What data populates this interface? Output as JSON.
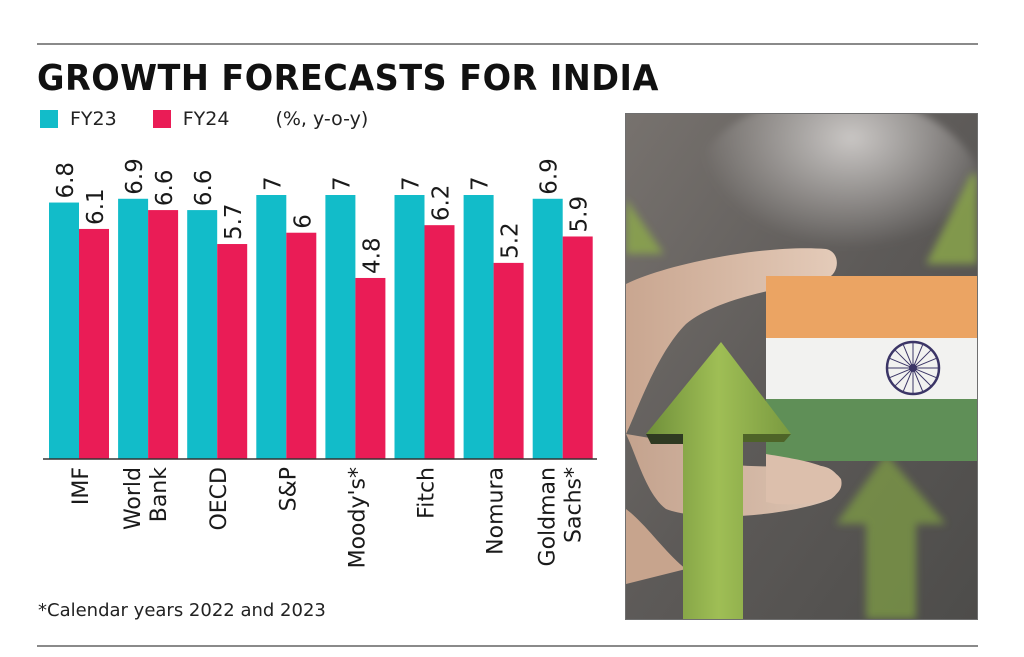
{
  "title": "GROWTH FORECASTS FOR INDIA",
  "legend": {
    "items": [
      {
        "label": "FY23",
        "color": "#12bcc9"
      },
      {
        "label": "FY24",
        "color": "#ea1c56"
      }
    ],
    "unit": "(%, y-o-y)"
  },
  "footnote": "*Calendar years 2022 and 2023",
  "photo": {
    "description": "Hand holding an Indian flag card with green upward arrows",
    "flag_colors": {
      "saffron": "#eba463",
      "white": "#f2f2f0",
      "green": "#5f8f57",
      "chakra": "#3b3566"
    },
    "arrow_color": "#8fae4a"
  },
  "chart_data": {
    "type": "bar",
    "title": "GROWTH FORECASTS FOR INDIA",
    "subtitle": "(%, y-o-y)",
    "xlabel": "",
    "ylabel": "",
    "categories": [
      [
        "IMF"
      ],
      [
        "World",
        "Bank"
      ],
      [
        "OECD"
      ],
      [
        "S&P"
      ],
      [
        "Moody's*"
      ],
      [
        "Fitch"
      ],
      [
        "Nomura"
      ],
      [
        "Goldman",
        "Sachs*"
      ]
    ],
    "series": [
      {
        "name": "FY23",
        "color": "#12bcc9",
        "values": [
          6.8,
          6.9,
          6.6,
          7,
          7,
          7,
          7,
          6.9
        ]
      },
      {
        "name": "FY24",
        "color": "#ea1c56",
        "values": [
          6.1,
          6.6,
          5.7,
          6,
          4.8,
          6.2,
          5.2,
          5.9
        ]
      }
    ],
    "value_labels": {
      "FY23": [
        "6.8",
        "6.9",
        "6.6",
        "7",
        "7",
        "7",
        "7",
        "6.9"
      ],
      "FY24": [
        "6.1",
        "6.6",
        "5.7",
        "6",
        "4.8",
        "6.2",
        "5.2",
        "5.9"
      ]
    },
    "ylim": [
      0,
      7
    ],
    "grid": false,
    "legend_position": "top-left",
    "label_orientation": "vertical"
  }
}
